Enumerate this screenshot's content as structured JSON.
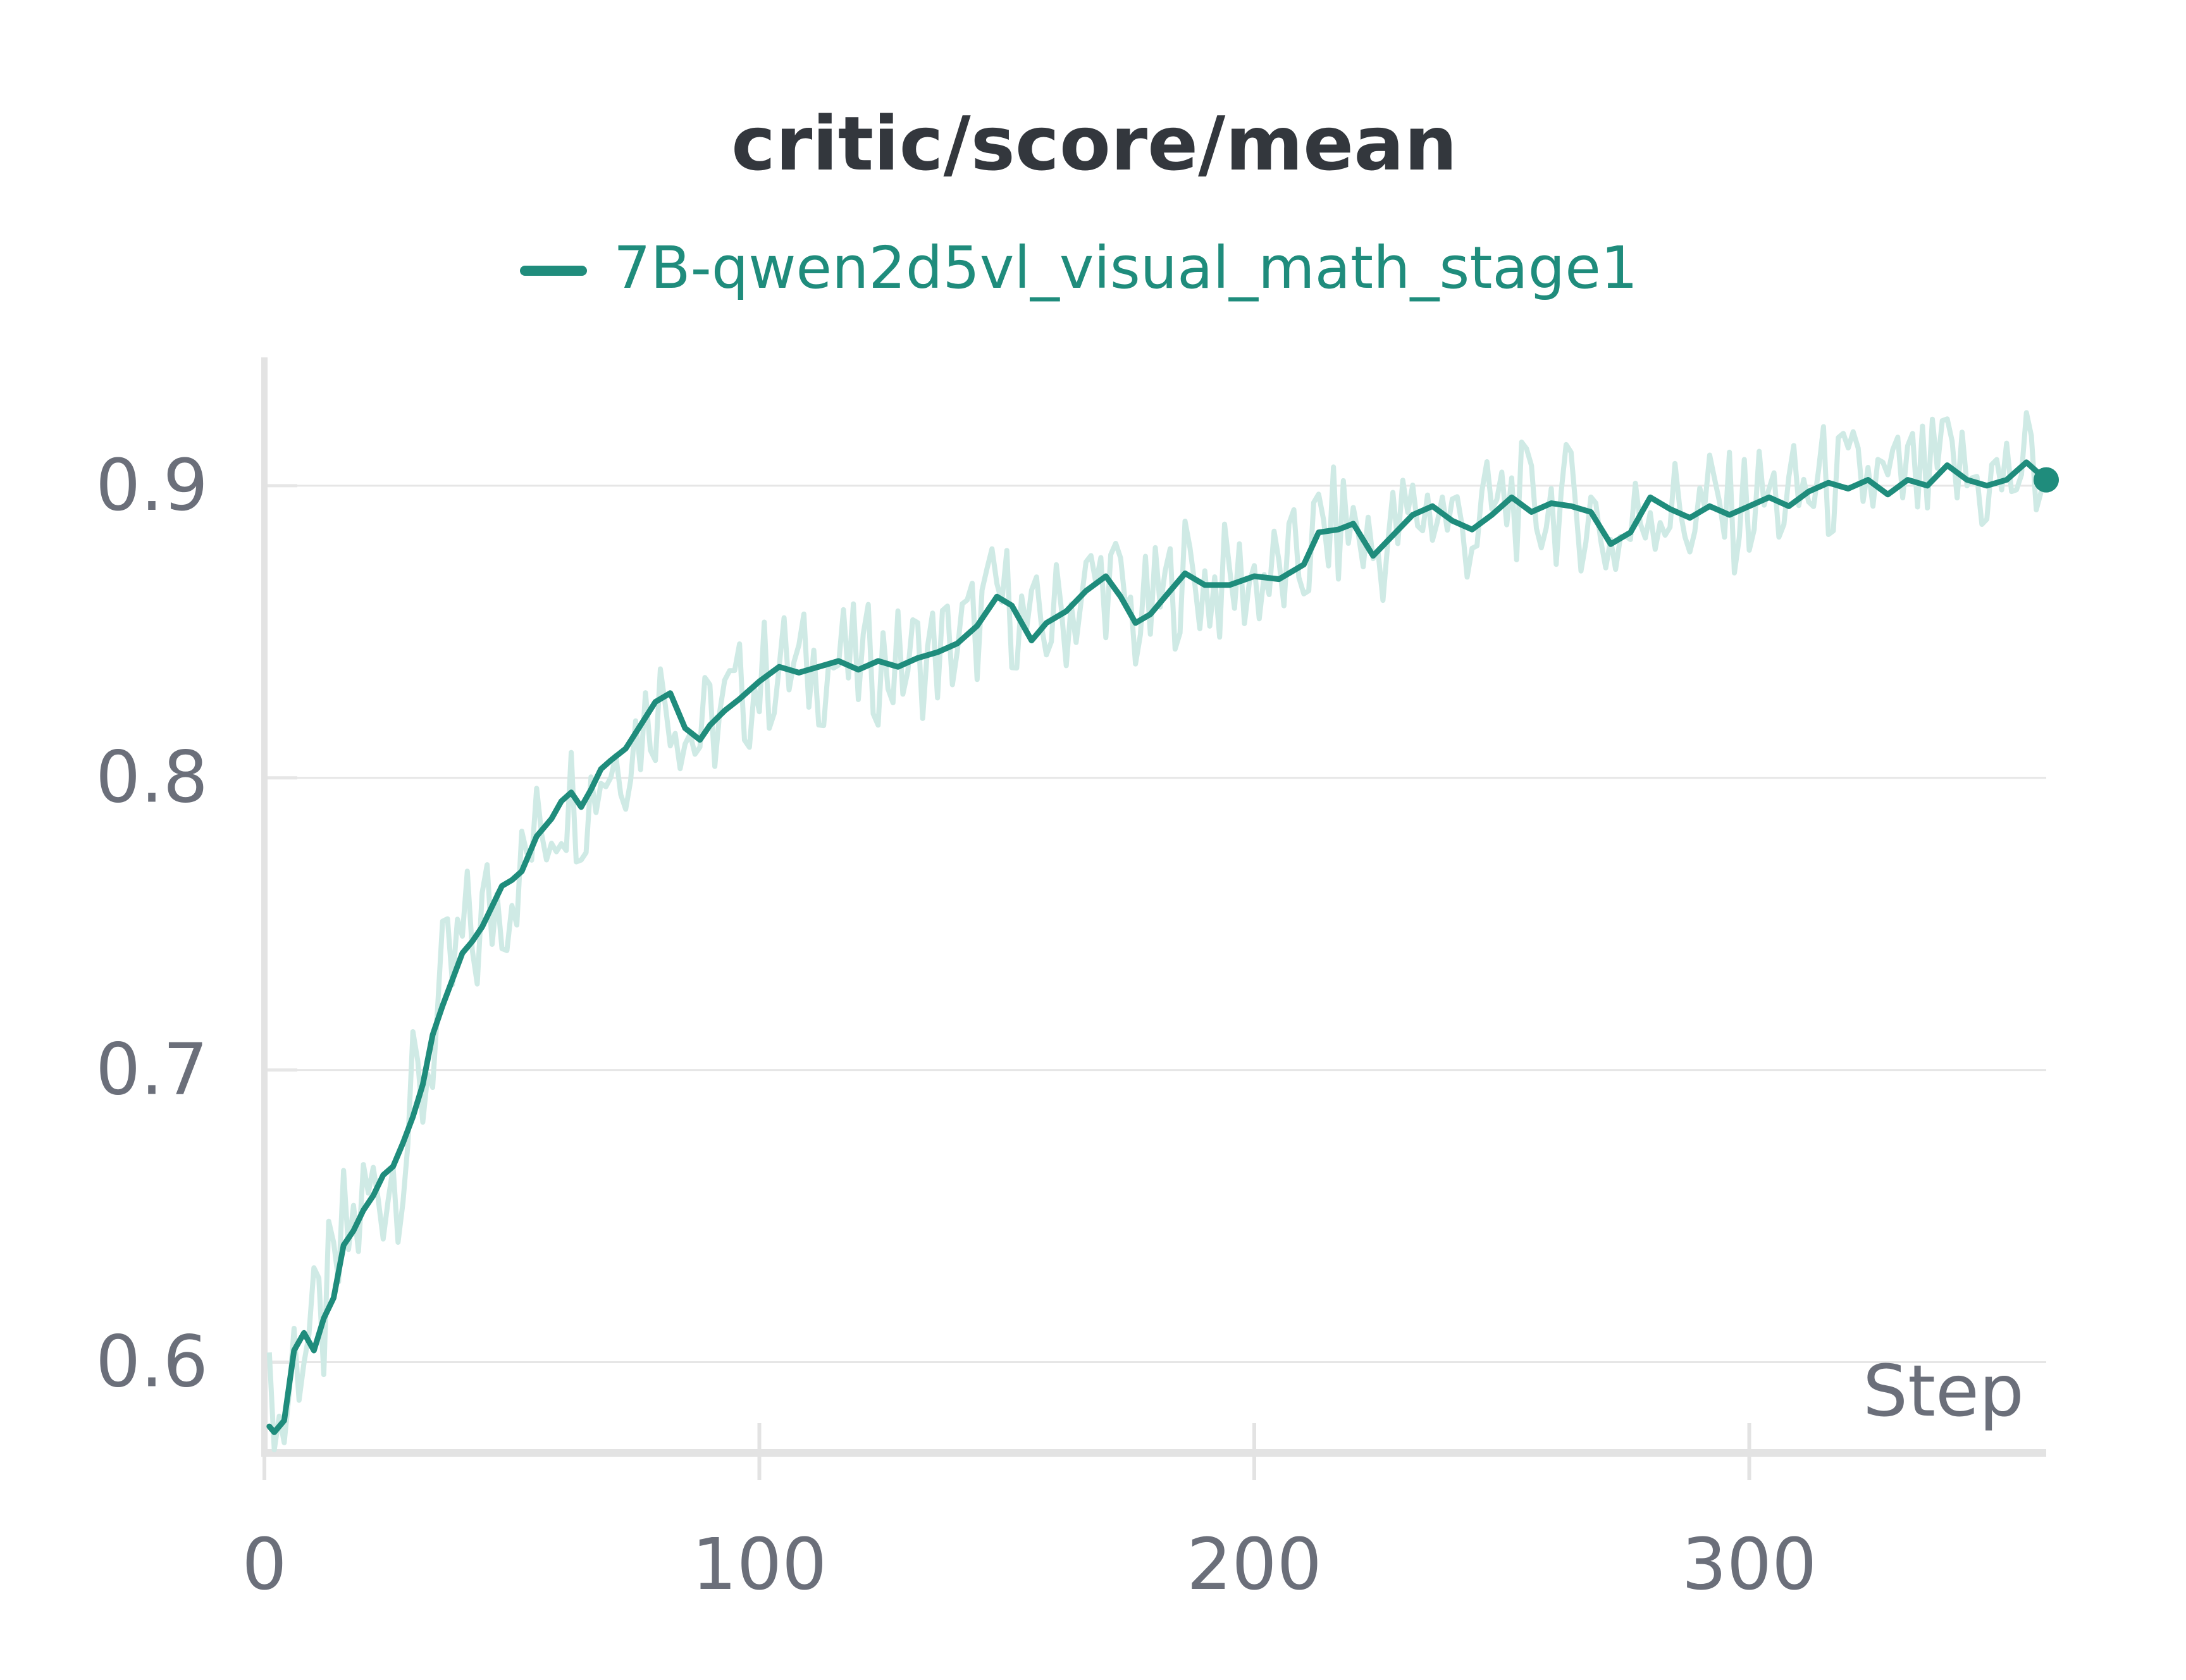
{
  "chart_data": {
    "type": "line",
    "title": "critic/score/mean",
    "xlabel": "Step",
    "ylabel": "",
    "xlim": [
      0,
      360
    ],
    "ylim": [
      0.57,
      0.945
    ],
    "xticks": [
      0,
      100,
      200,
      300
    ],
    "yticks": [
      0.6,
      0.7,
      0.8,
      0.9
    ],
    "x_tick_labels": [
      "0",
      "100",
      "200",
      "300"
    ],
    "y_tick_labels": [
      "0.6",
      "0.7",
      "0.8",
      "0.9"
    ],
    "grid": true,
    "legend_position": "top",
    "colors": {
      "line": "#1f8c7c",
      "raw": "#cfeae5"
    },
    "series": [
      {
        "name": "7B-qwen2d5vl_visual_math_stage1",
        "x": [
          1,
          2,
          4,
          6,
          8,
          10,
          12,
          14,
          16,
          18,
          20,
          22,
          24,
          26,
          28,
          30,
          32,
          34,
          36,
          38,
          40,
          42,
          44,
          46,
          48,
          50,
          52,
          55,
          58,
          60,
          62,
          64,
          66,
          68,
          70,
          73,
          76,
          79,
          82,
          85,
          88,
          90,
          93,
          96,
          100,
          104,
          108,
          112,
          116,
          120,
          124,
          128,
          132,
          136,
          140,
          144,
          148,
          151,
          155,
          158,
          162,
          166,
          170,
          173,
          176,
          179,
          182,
          186,
          190,
          195,
          200,
          205,
          210,
          213,
          217,
          220,
          224,
          228,
          232,
          236,
          240,
          244,
          248,
          252,
          256,
          260,
          264,
          268,
          272,
          276,
          280,
          284,
          288,
          292,
          296,
          300,
          304,
          308,
          312,
          316,
          320,
          324,
          328,
          332,
          336,
          340,
          344,
          348,
          352,
          356,
          360
        ],
        "values": [
          0.578,
          0.576,
          0.58,
          0.604,
          0.61,
          0.604,
          0.615,
          0.622,
          0.64,
          0.645,
          0.652,
          0.657,
          0.664,
          0.667,
          0.675,
          0.684,
          0.695,
          0.712,
          0.722,
          0.731,
          0.74,
          0.744,
          0.749,
          0.756,
          0.763,
          0.765,
          0.768,
          0.78,
          0.786,
          0.792,
          0.795,
          0.79,
          0.796,
          0.803,
          0.806,
          0.81,
          0.818,
          0.826,
          0.829,
          0.817,
          0.813,
          0.818,
          0.823,
          0.827,
          0.833,
          0.838,
          0.836,
          0.838,
          0.84,
          0.837,
          0.84,
          0.838,
          0.841,
          0.843,
          0.846,
          0.852,
          0.862,
          0.859,
          0.847,
          0.853,
          0.857,
          0.864,
          0.869,
          0.862,
          0.853,
          0.856,
          0.862,
          0.87,
          0.866,
          0.866,
          0.869,
          0.868,
          0.873,
          0.884,
          0.885,
          0.887,
          0.876,
          0.883,
          0.89,
          0.893,
          0.888,
          0.885,
          0.89,
          0.896,
          0.891,
          0.894,
          0.893,
          0.891,
          0.88,
          0.884,
          0.896,
          0.892,
          0.889,
          0.893,
          0.89,
          0.893,
          0.896,
          0.893,
          0.898,
          0.901,
          0.899,
          0.902,
          0.897,
          0.902,
          0.9,
          0.907,
          0.902,
          0.9,
          0.902,
          0.908,
          0.902
        ]
      }
    ]
  }
}
